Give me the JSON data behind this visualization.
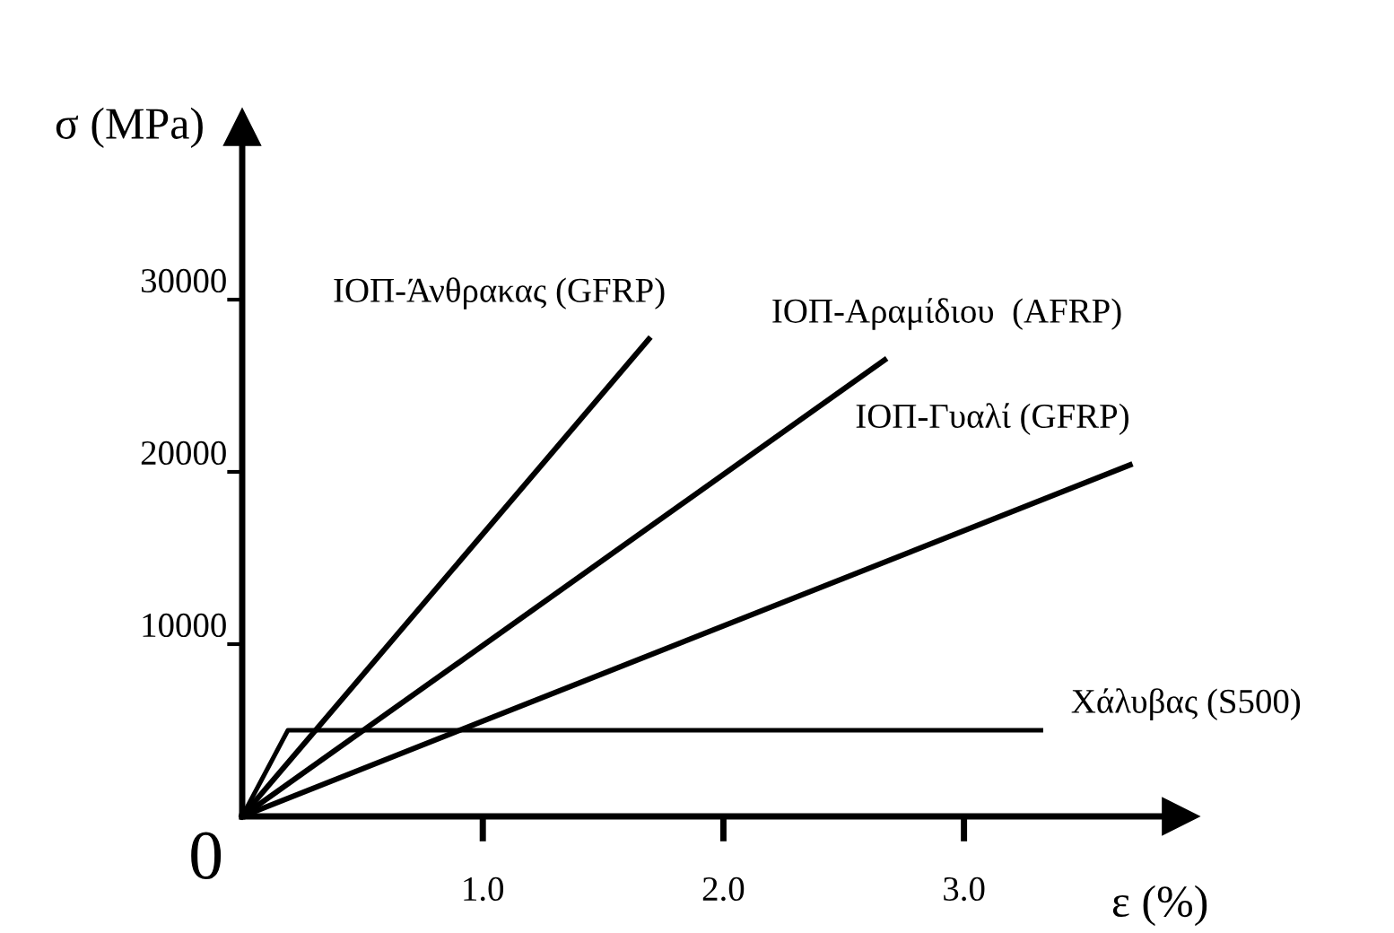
{
  "chart_data": {
    "type": "line",
    "xlabel": "ε (%)",
    "ylabel": "σ (MPa)",
    "xlim": [
      0,
      3.9
    ],
    "ylim": [
      0,
      40000
    ],
    "xticks": [
      {
        "value": 1,
        "label": "1.0"
      },
      {
        "value": 2,
        "label": "2.0"
      },
      {
        "value": 3,
        "label": "3.0"
      }
    ],
    "yticks": [
      10000,
      20000,
      30000
    ],
    "annotations": [
      "0"
    ],
    "grid": false,
    "legend": false,
    "marker": "none",
    "line_style": "solid",
    "series": [
      {
        "name": "ΙΟΠ-Άνθρακας (GFRP)",
        "color": "#000000",
        "x": [
          0,
          1.69
        ],
        "values": [
          0,
          27700
        ]
      },
      {
        "name": "ΙΟΠ-Αραμίδιου  (AFRP)",
        "color": "#000000",
        "x": [
          0,
          2.67
        ],
        "values": [
          0,
          26500
        ]
      },
      {
        "name": "ΙΟΠ-Γυαλί (GFRP)",
        "color": "#000000",
        "x": [
          0,
          3.69
        ],
        "values": [
          0,
          20400
        ]
      },
      {
        "name": "Χάλυβας (S500)",
        "color": "#000000",
        "x": [
          0,
          0.19,
          3.32
        ],
        "values": [
          0,
          5000,
          5000
        ]
      }
    ]
  }
}
